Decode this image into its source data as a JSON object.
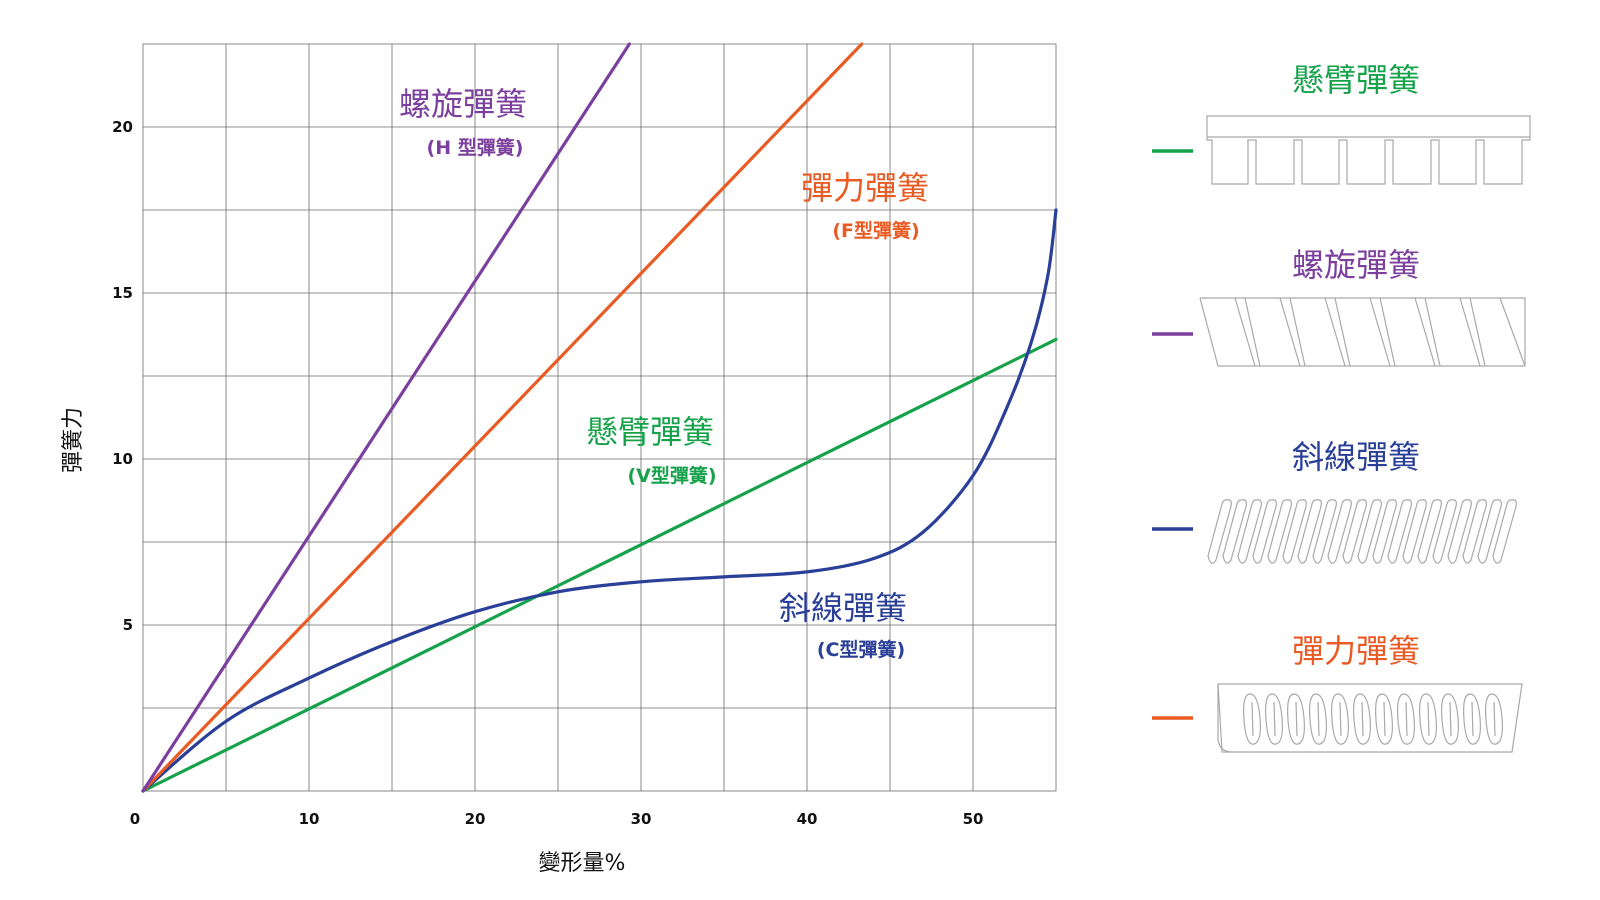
{
  "chart_data": {
    "type": "line",
    "xlabel": "變形量%",
    "ylabel": "彈簧力",
    "xlim": [
      0,
      55
    ],
    "ylim": [
      0,
      22.5
    ],
    "x_ticks": [
      0,
      10,
      20,
      30,
      40,
      50
    ],
    "y_ticks": [
      5,
      10,
      15,
      20
    ],
    "grid": true,
    "series": [
      {
        "name": "螺旋彈簧",
        "subname": "(H 型彈簧)",
        "color": "#7b3f9e",
        "x": [
          0,
          29.3
        ],
        "y": [
          0,
          22.5
        ]
      },
      {
        "name": "彈力彈簧",
        "subname": "(F型彈簧)",
        "color": "#ea5b24",
        "x": [
          0,
          43.3
        ],
        "y": [
          0,
          22.5
        ]
      },
      {
        "name": "懸臂彈簧",
        "subname": "(V型彈簧)",
        "color": "#16a24a",
        "x": [
          0,
          55
        ],
        "y": [
          0,
          13.6
        ]
      },
      {
        "name": "斜線彈簧",
        "subname": "(C型彈簧)",
        "color": "#2a3f97",
        "x": [
          0,
          5,
          10,
          15,
          20,
          25,
          30,
          35,
          40,
          44,
          47,
          50,
          52,
          53.5,
          54.5,
          55
        ],
        "y": [
          0,
          2.1,
          3.4,
          4.5,
          5.4,
          6.0,
          6.3,
          6.45,
          6.6,
          7.0,
          7.8,
          9.5,
          11.5,
          13.5,
          15.5,
          17.5
        ]
      }
    ]
  },
  "legend": {
    "placement": "right",
    "items": [
      {
        "label": "懸臂彈簧",
        "color": "#16a24a",
        "icon": "cantilever-spring-icon"
      },
      {
        "label": "螺旋彈簧",
        "color": "#7b3f9e",
        "icon": "helical-spring-icon"
      },
      {
        "label": "斜線彈簧",
        "color": "#2a3f97",
        "icon": "canted-coil-spring-icon"
      },
      {
        "label": "彈力彈簧",
        "color": "#ea5b24",
        "icon": "elastic-spring-icon"
      }
    ]
  }
}
